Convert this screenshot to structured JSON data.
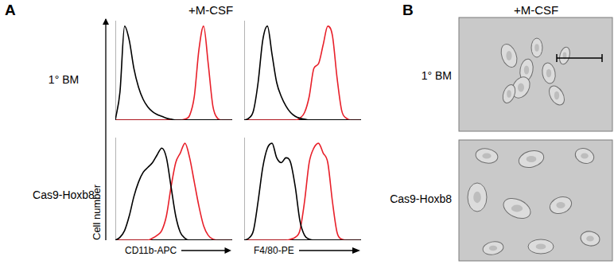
{
  "figure": {
    "panels": [
      {
        "label": "A",
        "heading": "+M-CSF",
        "rows": [
          "1° BM",
          "Cas9-Hoxb8"
        ],
        "ylabel": "Cell number"
      },
      {
        "label": "B",
        "heading": "+M-CSF",
        "rows": [
          "1° BM",
          "Cas9-Hoxb8"
        ]
      }
    ]
  },
  "chart_data": [
    {
      "type": "line",
      "x": [
        0,
        4,
        8,
        12,
        16,
        20,
        24,
        28,
        32,
        36,
        40,
        44,
        48,
        52,
        56,
        60,
        64,
        68,
        72,
        76,
        80,
        84,
        88,
        92,
        96,
        100
      ],
      "series": [
        {
          "color": "#000000",
          "values": [
            0,
            30,
            100,
            85,
            55,
            35,
            22,
            14,
            9,
            6,
            4,
            2,
            1,
            0,
            0,
            0,
            0,
            0,
            0,
            0,
            0,
            0,
            0,
            0,
            0,
            0
          ]
        },
        {
          "color": "#e8202a",
          "values": [
            0,
            0,
            0,
            0,
            0,
            0,
            0,
            0,
            0,
            0,
            0,
            0,
            0,
            0,
            0,
            1,
            5,
            25,
            75,
            100,
            60,
            15,
            2,
            0,
            0,
            0
          ]
        }
      ],
      "xlim": [
        0,
        100
      ],
      "ylim": [
        0,
        105
      ],
      "tick_labels": false,
      "grid": false
    },
    {
      "type": "line",
      "x": [
        0,
        4,
        8,
        12,
        16,
        20,
        24,
        28,
        32,
        36,
        40,
        44,
        48,
        52,
        56,
        60,
        64,
        68,
        72,
        76,
        80,
        84,
        88,
        92,
        96,
        100
      ],
      "series": [
        {
          "color": "#000000",
          "values": [
            0,
            2,
            10,
            40,
            85,
            100,
            70,
            40,
            25,
            15,
            8,
            4,
            2,
            1,
            0,
            0,
            0,
            0,
            0,
            0,
            0,
            0,
            0,
            0,
            0,
            0
          ]
        },
        {
          "color": "#e8202a",
          "values": [
            0,
            0,
            0,
            0,
            0,
            0,
            0,
            0,
            0,
            0,
            0,
            0,
            2,
            8,
            25,
            55,
            60,
            80,
            100,
            90,
            45,
            10,
            2,
            0,
            0,
            0
          ]
        }
      ],
      "xlim": [
        0,
        100
      ],
      "ylim": [
        0,
        105
      ],
      "tick_labels": false,
      "grid": false
    },
    {
      "type": "line",
      "x": [
        0,
        4,
        8,
        12,
        16,
        20,
        24,
        28,
        32,
        36,
        40,
        44,
        48,
        52,
        56,
        60,
        64,
        68,
        72,
        76,
        80,
        84,
        88,
        92,
        96,
        100
      ],
      "xlabel": "CD11b-APC",
      "series": [
        {
          "color": "#000000",
          "values": [
            0,
            3,
            10,
            25,
            45,
            60,
            70,
            75,
            80,
            88,
            95,
            85,
            55,
            25,
            8,
            2,
            0,
            0,
            0,
            0,
            0,
            0,
            0,
            0,
            0,
            0
          ]
        },
        {
          "color": "#e8202a",
          "values": [
            0,
            0,
            0,
            0,
            0,
            0,
            0,
            0,
            2,
            5,
            10,
            25,
            55,
            80,
            90,
            100,
            85,
            60,
            35,
            15,
            5,
            1,
            0,
            0,
            0,
            0
          ]
        }
      ],
      "xlim": [
        0,
        100
      ],
      "ylim": [
        0,
        105
      ],
      "tick_labels": false,
      "grid": false
    },
    {
      "type": "line",
      "x": [
        0,
        4,
        8,
        12,
        16,
        20,
        24,
        28,
        32,
        36,
        40,
        44,
        48,
        52,
        56,
        60,
        64,
        68,
        72,
        76,
        80,
        84,
        88,
        92,
        96,
        100
      ],
      "xlabel": "F4/80-PE",
      "series": [
        {
          "color": "#000000",
          "values": [
            0,
            2,
            10,
            40,
            75,
            95,
            100,
            85,
            80,
            85,
            80,
            55,
            20,
            5,
            1,
            0,
            0,
            0,
            0,
            0,
            0,
            0,
            0,
            0,
            0,
            0
          ]
        },
        {
          "color": "#e8202a",
          "values": [
            0,
            0,
            0,
            0,
            0,
            0,
            0,
            0,
            0,
            0,
            1,
            3,
            10,
            40,
            80,
            95,
            100,
            90,
            80,
            40,
            8,
            1,
            0,
            0,
            0,
            0
          ]
        }
      ],
      "xlim": [
        0,
        100
      ],
      "ylim": [
        0,
        105
      ],
      "tick_labels": false,
      "grid": false
    }
  ]
}
